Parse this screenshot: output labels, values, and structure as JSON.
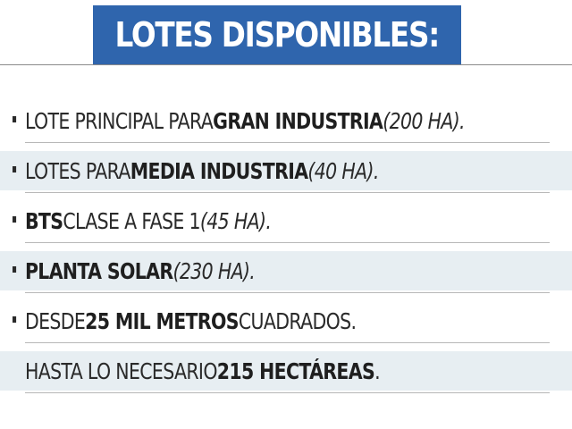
{
  "title": "LOTES DISPONIBLES:",
  "colors": {
    "title_background": "#2f65ad",
    "title_text": "#ffffff",
    "row_shade": "#e7eef2",
    "text": "#2a2a2a",
    "divider": "#b7b7b7"
  },
  "items": [
    {
      "bullet": true,
      "shaded": false,
      "segments": [
        {
          "text": "LOTE PRINCIPAL PARA ",
          "style": "normal"
        },
        {
          "text": "GRAN INDUSTRIA",
          "style": "bold"
        },
        {
          "text": " (200 HA).",
          "style": "italic"
        }
      ]
    },
    {
      "bullet": true,
      "shaded": true,
      "segments": [
        {
          "text": "LOTES PARA ",
          "style": "normal"
        },
        {
          "text": "MEDIA INDUSTRIA",
          "style": "bold"
        },
        {
          "text": " (40 HA).",
          "style": "italic"
        }
      ]
    },
    {
      "bullet": true,
      "shaded": false,
      "segments": [
        {
          "text": "BTS",
          "style": "bold"
        },
        {
          "text": " CLASE A FASE 1 ",
          "style": "normal"
        },
        {
          "text": "(45 HA).",
          "style": "italic"
        }
      ]
    },
    {
      "bullet": true,
      "shaded": true,
      "segments": [
        {
          "text": "PLANTA SOLAR",
          "style": "bold"
        },
        {
          "text": " (230 HA).",
          "style": "italic"
        }
      ]
    },
    {
      "bullet": true,
      "shaded": false,
      "segments": [
        {
          "text": "DESDE ",
          "style": "normal"
        },
        {
          "text": "25 MIL METROS",
          "style": "bold"
        },
        {
          "text": " CUADRADOS.",
          "style": "normal"
        }
      ]
    },
    {
      "bullet": false,
      "shaded": true,
      "segments": [
        {
          "text": "HASTA LO NECESARIO ",
          "style": "normal"
        },
        {
          "text": "215 HECTÁREAS",
          "style": "bold"
        },
        {
          "text": ".",
          "style": "normal"
        }
      ]
    }
  ]
}
